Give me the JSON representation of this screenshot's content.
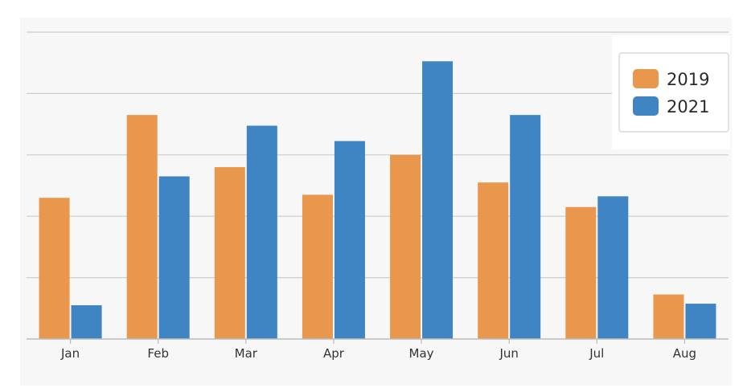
{
  "chart_data": {
    "type": "bar",
    "title": "",
    "xlabel": "",
    "ylabel": "",
    "ylim": [
      0,
      100
    ],
    "grid": true,
    "legend_position": "top-right",
    "categories": [
      "Jan",
      "Feb",
      "Mar",
      "Apr",
      "May",
      "Jun",
      "Jul",
      "Aug"
    ],
    "series": [
      {
        "name": "2019",
        "color": "#E8974D",
        "values": [
          46,
          73,
          56,
          47,
          60,
          51,
          43,
          14.5
        ]
      },
      {
        "name": "2021",
        "color": "#3F85C4",
        "values": [
          11,
          53,
          69.5,
          64.5,
          90.5,
          73,
          46.5,
          11.5
        ]
      }
    ]
  }
}
